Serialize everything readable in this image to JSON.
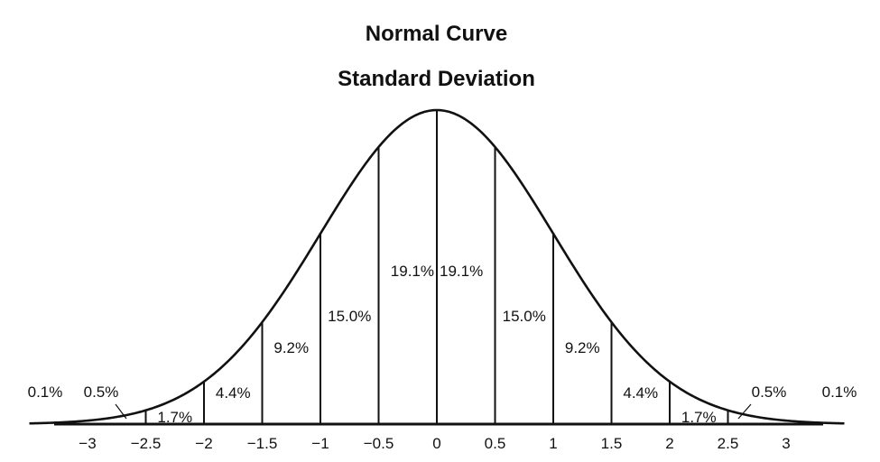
{
  "chart_data": {
    "type": "area",
    "title": "Normal Curve",
    "subtitle": "Standard Deviation",
    "xlabel": "",
    "ylabel": "",
    "xlim": [
      -3.5,
      3.5
    ],
    "x_ticks": [
      -3,
      -2.5,
      -2,
      -1.5,
      -1,
      -0.5,
      0,
      0.5,
      1,
      1.5,
      2,
      2.5,
      3
    ],
    "x_tick_labels": [
      "−3",
      "−2.5",
      "−2",
      "−1.5",
      "−1",
      "−0.5",
      "0",
      "0.5",
      "1",
      "1.5",
      "2",
      "2.5",
      "3"
    ],
    "regions": [
      {
        "from": -3.5,
        "to": -3,
        "label": "0.1%"
      },
      {
        "from": -3,
        "to": -2.5,
        "label": "0.5%"
      },
      {
        "from": -2.5,
        "to": -2,
        "label": "1.7%"
      },
      {
        "from": -2,
        "to": -1.5,
        "label": "4.4%"
      },
      {
        "from": -1.5,
        "to": -1,
        "label": "9.2%"
      },
      {
        "from": -1,
        "to": -0.5,
        "label": "15.0%"
      },
      {
        "from": -0.5,
        "to": 0,
        "label": "19.1%"
      },
      {
        "from": 0,
        "to": 0.5,
        "label": "19.1%"
      },
      {
        "from": 0.5,
        "to": 1,
        "label": "15.0%"
      },
      {
        "from": 1,
        "to": 1.5,
        "label": "9.2%"
      },
      {
        "from": 1.5,
        "to": 2,
        "label": "4.4%"
      },
      {
        "from": 2,
        "to": 2.5,
        "label": "1.7%"
      },
      {
        "from": 2.5,
        "to": 3,
        "label": "0.5%"
      },
      {
        "from": 3,
        "to": 3.5,
        "label": "0.1%"
      }
    ],
    "grid": false,
    "legend": "none",
    "line_color": "#111111",
    "background": "#ffffff"
  }
}
